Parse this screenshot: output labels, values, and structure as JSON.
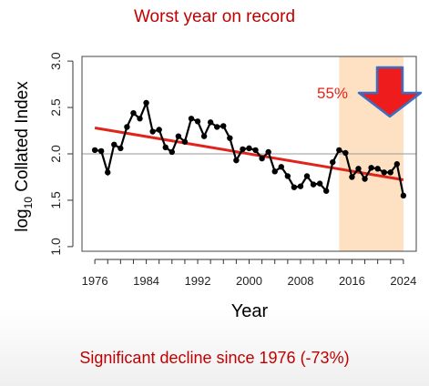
{
  "slide": {
    "title": "Worst year on record",
    "caption": "Significant decline since 1976 (-73%)"
  },
  "chart_data": {
    "type": "line",
    "ylabel_main": "log",
    "ylabel_sub": "10",
    "ylabel_rest": " Collated Index",
    "xlabel": "Year",
    "xlim": [
      1974,
      2026
    ],
    "ylim": [
      0.95,
      3.05
    ],
    "yticks": [
      1.0,
      1.5,
      2.0,
      2.5,
      3.0
    ],
    "ytick_labels": [
      "1.0",
      "1.5",
      "2.0",
      "2.5",
      "3.0"
    ],
    "xticks": [
      1976,
      1984,
      1992,
      2000,
      2008,
      2016,
      2024
    ],
    "xtick_labels": [
      "1976",
      "1984",
      "1992",
      "2000",
      "2008",
      "2016",
      "2024"
    ],
    "reference_line_y": 2.0,
    "trend": {
      "x": [
        1976,
        2024
      ],
      "y": [
        2.28,
        1.72
      ],
      "color": "#e0241b"
    },
    "highlight": {
      "x_from": 2014,
      "x_to": 2024,
      "color": "#fde1c2"
    },
    "annotation": {
      "text": "55%",
      "color": "#e0241b"
    },
    "arrow": {
      "fill": "#ee1c1c",
      "stroke": "#3a6fc4"
    },
    "series": [
      {
        "color": "#000000",
        "x": [
          1976,
          1977,
          1978,
          1979,
          1980,
          1981,
          1982,
          1983,
          1984,
          1985,
          1986,
          1987,
          1988,
          1989,
          1990,
          1991,
          1992,
          1993,
          1994,
          1995,
          1996,
          1997,
          1998,
          1999,
          2000,
          2001,
          2002,
          2003,
          2004,
          2005,
          2006,
          2007,
          2008,
          2009,
          2010,
          2011,
          2012,
          2013,
          2014,
          2015,
          2016,
          2017,
          2018,
          2019,
          2020,
          2021,
          2022,
          2023,
          2024
        ],
        "y": [
          2.04,
          2.03,
          1.8,
          2.1,
          2.06,
          2.29,
          2.44,
          2.38,
          2.55,
          2.24,
          2.26,
          2.07,
          2.02,
          2.19,
          2.13,
          2.38,
          2.35,
          2.19,
          2.34,
          2.29,
          2.3,
          2.17,
          1.93,
          2.05,
          2.06,
          2.04,
          1.95,
          2.02,
          1.81,
          1.86,
          1.76,
          1.64,
          1.65,
          1.76,
          1.67,
          1.68,
          1.6,
          1.91,
          2.04,
          2.01,
          1.75,
          1.84,
          1.73,
          1.85,
          1.84,
          1.8,
          1.8,
          1.89,
          1.55
        ]
      }
    ]
  }
}
